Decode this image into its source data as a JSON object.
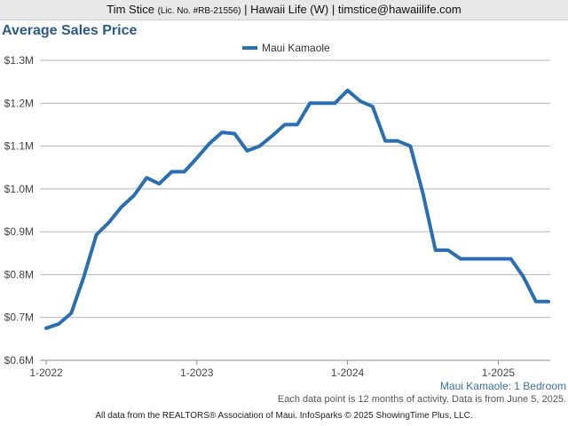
{
  "header": {
    "name": "Tim Stice",
    "license": "(Lic. No. #RB-21556)",
    "rest": "| Hawaii Life (W) | timstice@hawaiilife.com"
  },
  "chart_data": {
    "type": "line",
    "title": "Average Sales Price",
    "xlabel": "",
    "ylabel": "",
    "y_tick_labels": [
      "$0.6M",
      "$0.7M",
      "$0.8M",
      "$0.9M",
      "$1.0M",
      "$1.1M",
      "$1.2M",
      "$1.3M"
    ],
    "y_ticks": [
      0.6,
      0.7,
      0.8,
      0.9,
      1.0,
      1.1,
      1.2,
      1.3
    ],
    "ylim": [
      0.6,
      1.3
    ],
    "y_unit": "$M",
    "x_tick_labels": [
      "1-2022",
      "1-2023",
      "1-2024",
      "1-2025"
    ],
    "x_ticks": [
      "2022-01",
      "2023-01",
      "2024-01",
      "2025-01"
    ],
    "xlim": [
      "2022-01",
      "2025-05"
    ],
    "grid": "horizontal",
    "legend_position": "top-center",
    "series": [
      {
        "name": "Maui Kamaole",
        "color": "#2b6fb3",
        "x": [
          "2022-01",
          "2022-02",
          "2022-03",
          "2022-04",
          "2022-05",
          "2022-06",
          "2022-07",
          "2022-08",
          "2022-09",
          "2022-10",
          "2022-11",
          "2022-12",
          "2023-01",
          "2023-02",
          "2023-03",
          "2023-04",
          "2023-05",
          "2023-06",
          "2023-07",
          "2023-08",
          "2023-09",
          "2023-10",
          "2023-11",
          "2023-12",
          "2024-01",
          "2024-02",
          "2024-03",
          "2024-04",
          "2024-05",
          "2024-06",
          "2024-07",
          "2024-08",
          "2024-09",
          "2024-10",
          "2024-11",
          "2024-12",
          "2025-01",
          "2025-02",
          "2025-03",
          "2025-04",
          "2025-05"
        ],
        "values": [
          0.675,
          0.685,
          0.71,
          0.795,
          0.893,
          0.922,
          0.958,
          0.985,
          1.026,
          1.012,
          1.04,
          1.04,
          1.072,
          1.106,
          1.132,
          1.129,
          1.089,
          1.1,
          1.124,
          1.15,
          1.15,
          1.2,
          1.2,
          1.2,
          1.23,
          1.205,
          1.192,
          1.112,
          1.112,
          1.1,
          0.99,
          0.857,
          0.857,
          0.837,
          0.837,
          0.837,
          0.837,
          0.837,
          0.795,
          0.737,
          0.737
        ]
      }
    ]
  },
  "caption": "Maui Kamaole: 1 Bedroom",
  "note": "Each data point is 12 months of activity. Data is from June 5, 2025.",
  "footer": "All data from the REALTORS® Association of Maui. InfoSparks © 2025 ShowingTime Plus, LLC."
}
